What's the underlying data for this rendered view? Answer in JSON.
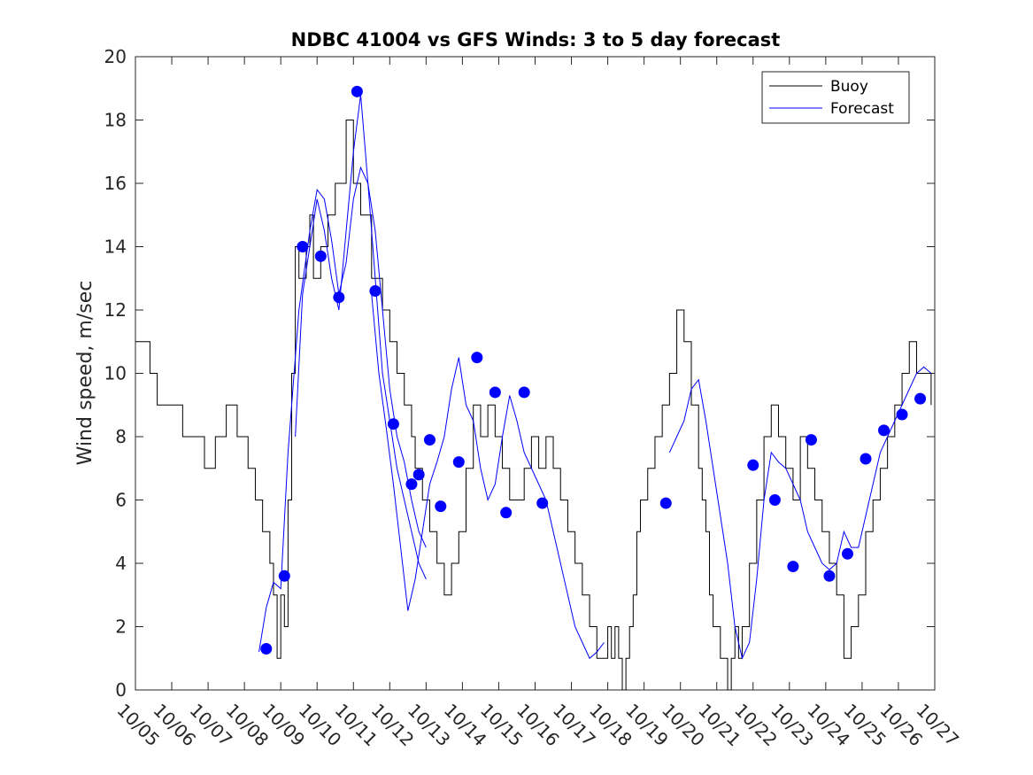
{
  "chart_data": {
    "type": "line",
    "title": "NDBC 41004 vs GFS Winds: 3 to 5 day forecast",
    "xlabel": "",
    "ylabel": "Wind speed, m/sec",
    "ylim": [
      0,
      20
    ],
    "yticks": [
      0,
      2,
      4,
      6,
      8,
      10,
      12,
      14,
      16,
      18,
      20
    ],
    "xlim_days": [
      0,
      22
    ],
    "xtick_labels": [
      "10/05",
      "10/06",
      "10/07",
      "10/08",
      "10/09",
      "10/10",
      "10/11",
      "10/12",
      "10/13",
      "10/14",
      "10/15",
      "10/16",
      "10/17",
      "10/18",
      "10/19",
      "10/20",
      "10/21",
      "10/22",
      "10/23",
      "10/24",
      "10/25",
      "10/26",
      "10/27"
    ],
    "legend": {
      "location": "top-right",
      "entries": [
        "Buoy",
        "Forecast"
      ]
    },
    "colors": {
      "buoy": "#000000",
      "forecast": "#0000ff",
      "axis": "#262626"
    },
    "series": [
      {
        "name": "Buoy",
        "x_days": [
          0,
          0.2,
          0.4,
          0.6,
          0.8,
          1.0,
          1.3,
          1.6,
          1.9,
          2.2,
          2.5,
          2.8,
          3.1,
          3.3,
          3.5,
          3.7,
          3.8,
          3.9,
          4.0,
          4.1,
          4.2,
          4.3,
          4.4,
          4.5,
          4.6,
          4.7,
          4.8,
          4.9,
          5.1,
          5.3,
          5.5,
          5.8,
          6.0,
          6.2,
          6.5,
          6.8,
          7.0,
          7.2,
          7.4,
          7.6,
          7.7,
          7.9,
          8.1,
          8.3,
          8.5,
          8.7,
          8.9,
          9.1,
          9.3,
          9.5,
          9.7,
          9.9,
          10.1,
          10.3,
          10.5,
          10.7,
          10.9,
          11.1,
          11.3,
          11.5,
          11.7,
          11.9,
          12.1,
          12.3,
          12.5,
          12.7,
          12.9,
          13.0,
          13.1,
          13.2,
          13.3,
          13.4,
          13.5,
          13.6,
          13.7,
          13.8,
          13.9,
          14.1,
          14.3,
          14.5,
          14.7,
          14.9,
          15.1,
          15.3,
          15.5,
          15.6,
          15.7,
          15.8,
          15.9,
          16.1,
          16.3,
          16.4,
          16.5,
          16.6,
          16.7,
          16.9,
          17.1,
          17.3,
          17.5,
          17.7,
          17.9,
          18.1,
          18.3,
          18.5,
          18.7,
          18.9,
          19.1,
          19.3,
          19.5,
          19.7,
          19.9,
          20.1,
          20.3,
          20.5,
          20.7,
          20.9,
          21.1,
          21.3,
          21.5,
          21.7,
          21.9
        ],
        "values": [
          11,
          11,
          10,
          9,
          9,
          9,
          8,
          8,
          7,
          8,
          9,
          8,
          7,
          6,
          5,
          4,
          3,
          1,
          3,
          2,
          6,
          10,
          14,
          13,
          13,
          14,
          15,
          13,
          14,
          15,
          16,
          18,
          16,
          15,
          13,
          12,
          11,
          10,
          9,
          8,
          7,
          6,
          5,
          4,
          3,
          4,
          5,
          7,
          9,
          8,
          9,
          8,
          7,
          6,
          6,
          7,
          8,
          7,
          8,
          7,
          6,
          5,
          4,
          3,
          2,
          1,
          1,
          2,
          1,
          2,
          1,
          0,
          1,
          2,
          3,
          5,
          6,
          7,
          8,
          9,
          10,
          12,
          11,
          9,
          7,
          6,
          5,
          3,
          2,
          1,
          0,
          1,
          2,
          1,
          2,
          4,
          6,
          8,
          9,
          8,
          7,
          6,
          8,
          7,
          6,
          5,
          4,
          3,
          1,
          2,
          3,
          5,
          6,
          7,
          8,
          9,
          10,
          11,
          10,
          10,
          9
        ]
      },
      {
        "name": "Forecast",
        "runs": [
          {
            "x_days": [
              3.4,
              3.6,
              3.8,
              4.0,
              4.2,
              4.5,
              4.8,
              5.0,
              5.2,
              5.4,
              5.6,
              5.8,
              6.0,
              6.2,
              6.4,
              6.6,
              6.8,
              7.0,
              7.2,
              7.4,
              7.6,
              7.8,
              8.0
            ],
            "values": [
              1.2,
              2.6,
              3.4,
              3.2,
              7.5,
              12.0,
              14.5,
              15.8,
              15.5,
              14.2,
              12.5,
              13.5,
              15.5,
              16.5,
              16.0,
              14.5,
              12.0,
              9.5,
              8.0,
              7.2,
              6.0,
              5.0,
              4.5
            ]
          },
          {
            "x_days": [
              4.4,
              4.6,
              4.8,
              5.0,
              5.2,
              5.4,
              5.6,
              5.8,
              6.0,
              6.2,
              6.4,
              6.6,
              6.8,
              7.0,
              7.2,
              7.4,
              7.6,
              7.8,
              8.0
            ],
            "values": [
              8.0,
              12.5,
              14.0,
              15.5,
              14.5,
              13.0,
              12.0,
              14.5,
              17.0,
              18.8,
              16.0,
              13.0,
              10.0,
              8.5,
              7.0,
              6.0,
              5.0,
              4.0,
              3.5
            ]
          },
          {
            "x_days": [
              6.5,
              6.7,
              6.9,
              7.1,
              7.3,
              7.5,
              7.7,
              7.9,
              8.1,
              8.3,
              8.5,
              8.7,
              8.9,
              9.1,
              9.3,
              9.5,
              9.7,
              9.9,
              10.1,
              10.3,
              10.5,
              10.7,
              10.9,
              11.1,
              11.3,
              11.5,
              11.7,
              11.9,
              12.1,
              12.3,
              12.5,
              12.7,
              12.9
            ],
            "values": [
              12.5,
              10.0,
              8.3,
              6.5,
              4.5,
              2.5,
              3.5,
              5.0,
              6.5,
              7.2,
              8.0,
              9.5,
              10.5,
              9.0,
              8.5,
              7.0,
              6.0,
              6.5,
              8.0,
              9.3,
              8.5,
              7.5,
              7.0,
              6.5,
              6.0,
              5.0,
              4.0,
              3.0,
              2.0,
              1.5,
              1.0,
              1.2,
              1.5
            ]
          },
          {
            "x_days": [
              14.7,
              14.9,
              15.1,
              15.3,
              15.5,
              15.7,
              15.9,
              16.1,
              16.3,
              16.5,
              16.7,
              16.9,
              17.1,
              17.3,
              17.5,
              17.7,
              17.9,
              18.1,
              18.3,
              18.5,
              18.7,
              18.9,
              19.1,
              19.3,
              19.5,
              19.7,
              19.9,
              20.1,
              20.3,
              20.5,
              20.7,
              20.9,
              21.1,
              21.3,
              21.5,
              21.7,
              21.9
            ],
            "values": [
              7.5,
              8.0,
              8.5,
              9.5,
              9.8,
              8.5,
              7.0,
              5.5,
              4.0,
              2.0,
              1.0,
              1.5,
              3.5,
              6.0,
              7.5,
              7.2,
              7.0,
              6.5,
              6.0,
              5.0,
              4.5,
              4.0,
              3.8,
              4.0,
              5.0,
              4.5,
              4.5,
              5.5,
              6.5,
              7.5,
              8.0,
              8.5,
              9.0,
              9.5,
              10.0,
              10.2,
              10.0
            ]
          }
        ],
        "markers": {
          "x_days": [
            3.6,
            4.1,
            4.6,
            5.1,
            5.6,
            6.1,
            6.6,
            7.1,
            7.6,
            7.8,
            8.1,
            8.4,
            8.9,
            9.4,
            9.9,
            10.2,
            10.7,
            11.2,
            14.6,
            17.0,
            17.6,
            18.1,
            18.6,
            19.1,
            19.6,
            20.1,
            20.6,
            21.1,
            21.6
          ],
          "values": [
            1.3,
            3.6,
            14.0,
            13.7,
            12.4,
            18.9,
            12.6,
            8.4,
            6.5,
            6.8,
            7.9,
            5.8,
            7.2,
            10.5,
            9.4,
            5.6,
            9.4,
            5.9,
            5.9,
            7.1,
            6.0,
            3.9,
            7.9,
            3.6,
            4.3,
            7.3,
            8.2,
            8.7,
            9.2
          ]
        }
      }
    ]
  }
}
